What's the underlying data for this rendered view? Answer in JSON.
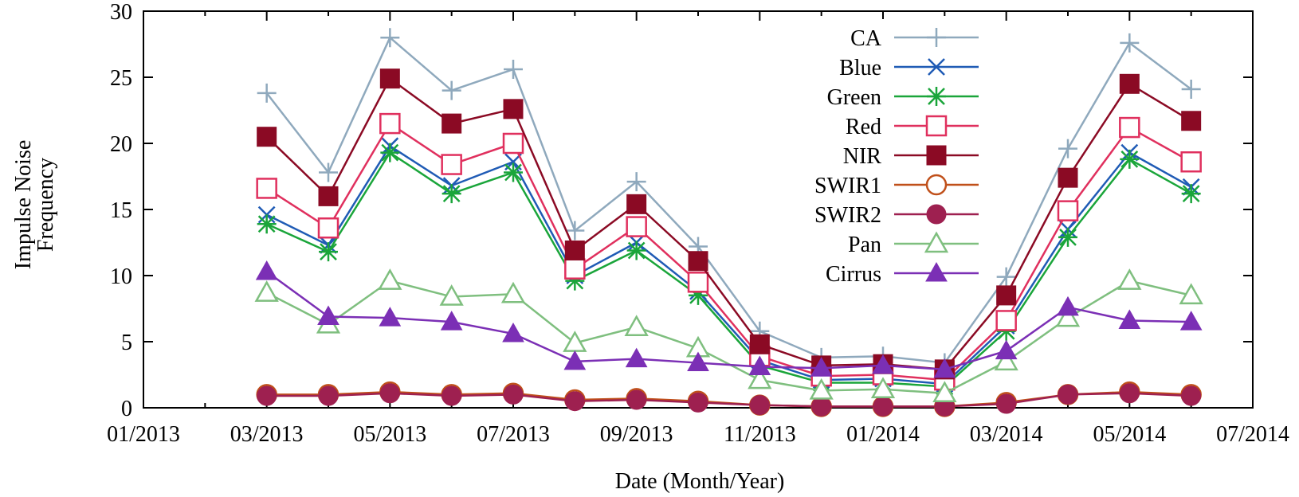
{
  "chart_data": {
    "type": "line",
    "xlabel": "Date (Month/Year)",
    "ylabel": [
      "Impulse Noise",
      "Frequency"
    ],
    "ylim": [
      0,
      30
    ],
    "yticks": [
      0,
      5,
      10,
      15,
      20,
      25,
      30
    ],
    "xlim": [
      0,
      18
    ],
    "xticks": [
      {
        "pos": 0,
        "label": "01/2013"
      },
      {
        "pos": 2,
        "label": "03/2013"
      },
      {
        "pos": 4,
        "label": "05/2013"
      },
      {
        "pos": 6,
        "label": "07/2013"
      },
      {
        "pos": 8,
        "label": "09/2013"
      },
      {
        "pos": 10,
        "label": "11/2013"
      },
      {
        "pos": 12,
        "label": "01/2014"
      },
      {
        "pos": 14,
        "label": "03/2014"
      },
      {
        "pos": 16,
        "label": "05/2014"
      },
      {
        "pos": 18,
        "label": "07/2014"
      }
    ],
    "x": [
      2,
      3,
      4,
      5,
      6,
      7,
      8,
      9,
      10,
      11,
      12,
      13,
      14,
      15,
      16,
      17
    ],
    "legend_position": "top-right",
    "series": [
      {
        "name": "CA",
        "color": "#8fa9bd",
        "marker": "plus",
        "values": [
          23.8,
          17.8,
          28.0,
          24.0,
          25.6,
          13.4,
          17.1,
          12.2,
          5.8,
          3.8,
          3.9,
          3.4,
          9.9,
          19.6,
          27.6,
          24.1
        ]
      },
      {
        "name": "Blue",
        "color": "#1f5bb5",
        "marker": "cross",
        "values": [
          14.6,
          12.3,
          19.8,
          16.8,
          18.6,
          10.0,
          12.5,
          8.8,
          3.6,
          2.1,
          2.2,
          1.8,
          6.2,
          13.5,
          19.3,
          16.7
        ]
      },
      {
        "name": "Green",
        "color": "#1aa53a",
        "marker": "asterisk",
        "values": [
          13.9,
          11.8,
          19.3,
          16.2,
          17.8,
          9.6,
          11.9,
          8.5,
          3.2,
          1.9,
          1.9,
          1.6,
          5.8,
          12.9,
          18.8,
          16.2
        ]
      },
      {
        "name": "Red",
        "color": "#e0305e",
        "marker": "square-open",
        "values": [
          16.6,
          13.6,
          21.5,
          18.4,
          20.0,
          10.5,
          13.7,
          9.5,
          3.9,
          2.4,
          2.5,
          2.1,
          6.6,
          14.9,
          21.2,
          18.6
        ]
      },
      {
        "name": "NIR",
        "color": "#8b0a24",
        "marker": "square-filled",
        "values": [
          20.5,
          16.0,
          24.9,
          21.5,
          22.6,
          11.9,
          15.4,
          11.1,
          4.8,
          3.2,
          3.3,
          2.9,
          8.5,
          17.4,
          24.5,
          21.7
        ]
      },
      {
        "name": "SWIR1",
        "color": "#c0501a",
        "marker": "circle-open",
        "values": [
          1.0,
          1.0,
          1.2,
          1.0,
          1.1,
          0.6,
          0.7,
          0.5,
          0.2,
          0.1,
          0.1,
          0.1,
          0.4,
          1.0,
          1.2,
          1.0
        ]
      },
      {
        "name": "SWIR2",
        "color": "#9e2050",
        "marker": "circle-filled",
        "values": [
          0.9,
          0.9,
          1.1,
          0.9,
          1.0,
          0.5,
          0.6,
          0.4,
          0.2,
          0.1,
          0.1,
          0.1,
          0.3,
          1.0,
          1.1,
          0.9
        ]
      },
      {
        "name": "Pan",
        "color": "#7fbf7f",
        "marker": "triangle-open",
        "values": [
          8.7,
          6.3,
          9.6,
          8.4,
          8.6,
          4.9,
          6.1,
          4.5,
          2.1,
          1.3,
          1.4,
          1.1,
          3.5,
          6.8,
          9.6,
          8.5
        ]
      },
      {
        "name": "Cirrus",
        "color": "#7b2fb5",
        "marker": "triangle-filled",
        "values": [
          10.3,
          6.9,
          6.8,
          6.5,
          5.6,
          3.5,
          3.7,
          3.4,
          3.1,
          3.0,
          3.2,
          2.9,
          4.3,
          7.6,
          6.6,
          6.5
        ]
      }
    ]
  }
}
